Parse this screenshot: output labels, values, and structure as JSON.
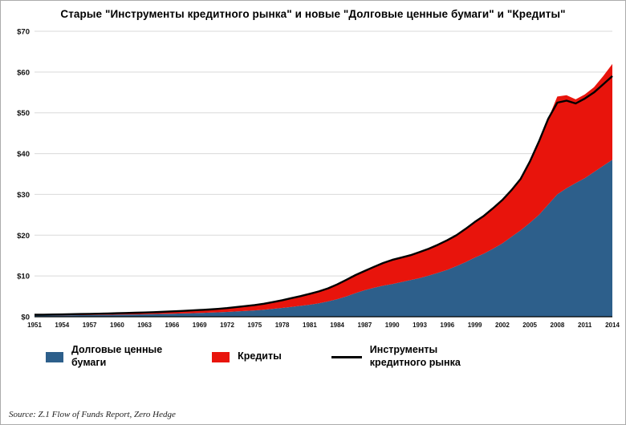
{
  "title": "Старые \"Инструменты кредитного рынка\" и новые \"Долговые ценные бумаги\" и \"Кредиты\"",
  "source": "Source: Z.1 Flow of Funds Report, Zero Hedge",
  "chart_data": {
    "type": "area",
    "subtype": "stacked-area-with-line",
    "ylim": [
      0,
      70
    ],
    "ytick_step": 10,
    "ytick_prefix": "$",
    "grid": "horizontal",
    "grid_color": "#d9d9d9",
    "axis_color": "#000000",
    "x_tick_labels": [
      1951,
      1954,
      1957,
      1960,
      1963,
      1966,
      1969,
      1972,
      1975,
      1978,
      1981,
      1984,
      1987,
      1990,
      1993,
      1996,
      1999,
      2002,
      2005,
      2008,
      2011,
      2014
    ],
    "years": [
      1951,
      1952,
      1953,
      1954,
      1955,
      1956,
      1957,
      1958,
      1959,
      1960,
      1961,
      1962,
      1963,
      1964,
      1965,
      1966,
      1967,
      1968,
      1969,
      1970,
      1971,
      1972,
      1973,
      1974,
      1975,
      1976,
      1977,
      1978,
      1979,
      1980,
      1981,
      1982,
      1983,
      1984,
      1985,
      1986,
      1987,
      1988,
      1989,
      1990,
      1991,
      1992,
      1993,
      1994,
      1995,
      1996,
      1997,
      1998,
      1999,
      2000,
      2001,
      2002,
      2003,
      2004,
      2005,
      2006,
      2007,
      2008,
      2009,
      2010,
      2011,
      2012,
      2013,
      2014
    ],
    "series": [
      {
        "name": "Долговые ценные бумаги",
        "role": "stacked-area",
        "color": "#2d5f8b",
        "values": [
          0.3,
          0.32,
          0.34,
          0.35,
          0.38,
          0.4,
          0.42,
          0.45,
          0.48,
          0.51,
          0.54,
          0.58,
          0.61,
          0.66,
          0.7,
          0.75,
          0.81,
          0.87,
          0.93,
          1.0,
          1.08,
          1.18,
          1.29,
          1.41,
          1.56,
          1.74,
          1.94,
          2.17,
          2.42,
          2.67,
          2.95,
          3.3,
          3.75,
          4.3,
          5.0,
          5.8,
          6.5,
          7.1,
          7.6,
          8.0,
          8.5,
          9.0,
          9.5,
          10.1,
          10.8,
          11.5,
          12.4,
          13.4,
          14.5,
          15.5,
          16.7,
          18.0,
          19.6,
          21.2,
          23.0,
          25.0,
          27.5,
          30.0,
          31.5,
          32.8,
          34.0,
          35.5,
          37.0,
          38.5
        ]
      },
      {
        "name": "Кредиты",
        "role": "stacked-area",
        "color": "#e8140c",
        "values": [
          0.19,
          0.2,
          0.21,
          0.23,
          0.25,
          0.27,
          0.29,
          0.3,
          0.33,
          0.35,
          0.38,
          0.4,
          0.44,
          0.47,
          0.52,
          0.56,
          0.6,
          0.66,
          0.72,
          0.77,
          0.85,
          0.95,
          1.08,
          1.2,
          1.31,
          1.45,
          1.65,
          1.88,
          2.15,
          2.39,
          2.67,
          2.92,
          3.21,
          3.63,
          4.06,
          4.42,
          4.73,
          5.14,
          5.57,
          5.95,
          6.01,
          6.1,
          6.36,
          6.6,
          6.87,
          7.26,
          7.59,
          8.15,
          8.74,
          9.25,
          9.93,
          10.62,
          11.45,
          12.6,
          15.0,
          18.0,
          21.0,
          24.0,
          22.8,
          20.5,
          20.5,
          20.8,
          22.0,
          23.5
        ]
      },
      {
        "name": "Инструменты кредитного рынка",
        "role": "line",
        "color": "#000000",
        "values": [
          0.49,
          0.52,
          0.55,
          0.58,
          0.63,
          0.67,
          0.71,
          0.75,
          0.81,
          0.86,
          0.92,
          0.98,
          1.05,
          1.13,
          1.22,
          1.31,
          1.41,
          1.53,
          1.65,
          1.77,
          1.93,
          2.13,
          2.37,
          2.61,
          2.87,
          3.19,
          3.59,
          4.05,
          4.57,
          5.06,
          5.62,
          6.22,
          6.96,
          7.93,
          9.06,
          10.22,
          11.23,
          12.24,
          13.17,
          13.95,
          14.51,
          15.1,
          15.86,
          16.7,
          17.67,
          18.76,
          19.99,
          21.55,
          23.24,
          24.75,
          26.63,
          28.62,
          31.05,
          33.8,
          38.0,
          43.0,
          48.5,
          52.5,
          53.0,
          52.3,
          53.5,
          55.0,
          57.0,
          59.0
        ]
      }
    ],
    "legend": [
      {
        "label": "Долговые ценные\nбумаги",
        "color": "#2d5f8b",
        "swatch": "square"
      },
      {
        "label": "Кредиты",
        "color": "#e8140c",
        "swatch": "square"
      },
      {
        "label": "Инструменты\nкредитного рынка",
        "color": "#000000",
        "swatch": "line"
      }
    ]
  }
}
